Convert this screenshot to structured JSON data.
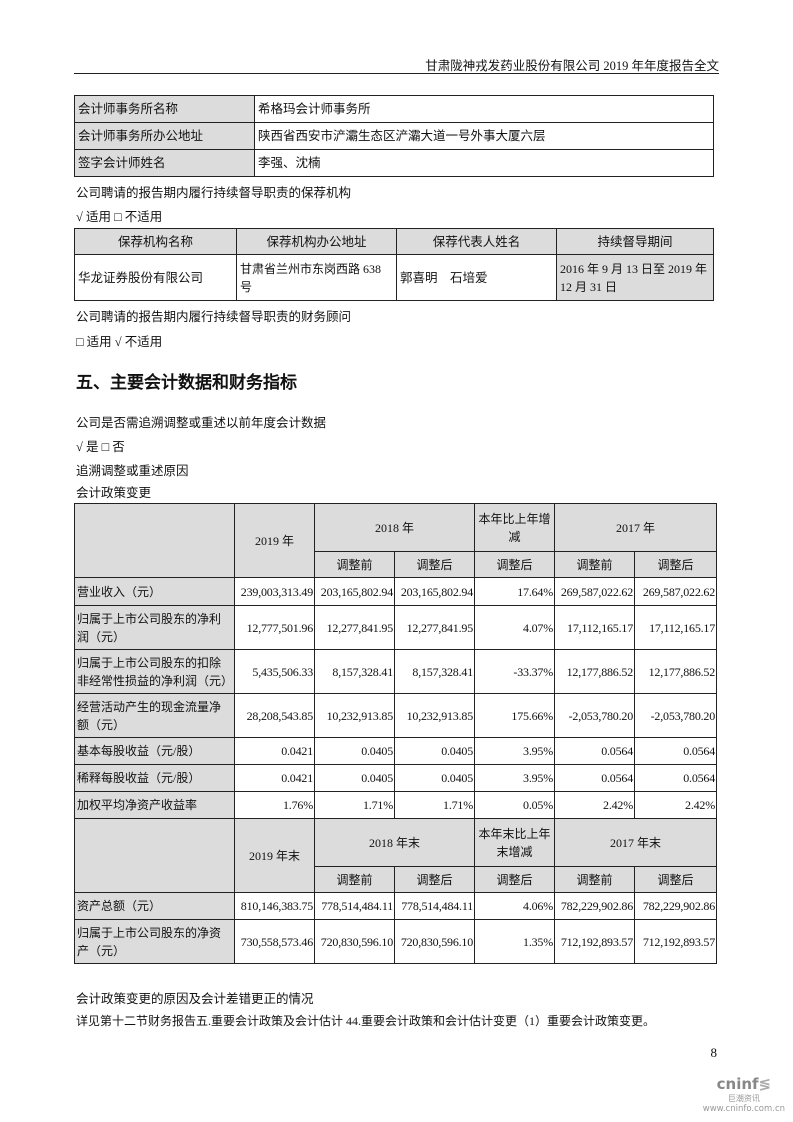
{
  "header": {
    "title": "甘肃陇神戎发药业股份有限公司 2019 年年度报告全文"
  },
  "accounting_firm": [
    {
      "label": "会计师事务所名称",
      "value": "希格玛会计师事务所"
    },
    {
      "label": "会计师事务所办公地址",
      "value": "陕西省西安市浐灞生态区浐灞大道一号外事大厦六层"
    },
    {
      "label": "签字会计师姓名",
      "value": "李强、沈楠"
    }
  ],
  "sponsor_intro": "公司聘请的报告期内履行持续督导职责的保荐机构",
  "sponsor_applicable": "√ 适用 □ 不适用",
  "sponsor_table": {
    "headers": [
      "保荐机构名称",
      "保荐机构办公地址",
      "保荐代表人姓名",
      "持续督导期间"
    ],
    "row": [
      "华龙证券股份有限公司",
      "甘肃省兰州市东岗西路 638 号",
      "郭喜明　石培爱",
      "2016 年 9 月 13 日至 2019 年 12 月 31 日"
    ]
  },
  "advisor_intro": "公司聘请的报告期内履行持续督导职责的财务顾问",
  "advisor_applicable": "□ 适用 √ 不适用",
  "section_title": "五、主要会计数据和财务指标",
  "q_retro": "公司是否需追溯调整或重述以前年度会计数据",
  "q_retro_answer": "√ 是 □ 否",
  "retro_reason_label": "追溯调整或重述原因",
  "retro_reason": "会计政策变更",
  "fin_table": {
    "h1": {
      "y2019": "2019 年",
      "y2018": "2018 年",
      "change": "本年比上年增减",
      "y2017": "2017 年"
    },
    "sub": [
      "调整前",
      "调整后",
      "调整后",
      "调整前",
      "调整后"
    ],
    "rows": [
      [
        "营业收入（元）",
        "239,003,313.49",
        "203,165,802.94",
        "203,165,802.94",
        "17.64%",
        "269,587,022.62",
        "269,587,022.62"
      ],
      [
        "归属于上市公司股东的净利润（元）",
        "12,777,501.96",
        "12,277,841.95",
        "12,277,841.95",
        "4.07%",
        "17,112,165.17",
        "17,112,165.17"
      ],
      [
        "归属于上市公司股东的扣除非经常性损益的净利润（元）",
        "5,435,506.33",
        "8,157,328.41",
        "8,157,328.41",
        "-33.37%",
        "12,177,886.52",
        "12,177,886.52"
      ],
      [
        "经营活动产生的现金流量净额（元）",
        "28,208,543.85",
        "10,232,913.85",
        "10,232,913.85",
        "175.66%",
        "-2,053,780.20",
        "-2,053,780.20"
      ],
      [
        "基本每股收益（元/股）",
        "0.0421",
        "0.0405",
        "0.0405",
        "3.95%",
        "0.0564",
        "0.0564"
      ],
      [
        "稀释每股收益（元/股）",
        "0.0421",
        "0.0405",
        "0.0405",
        "3.95%",
        "0.0564",
        "0.0564"
      ],
      [
        "加权平均净资产收益率",
        "1.76%",
        "1.71%",
        "1.71%",
        "0.05%",
        "2.42%",
        "2.42%"
      ]
    ],
    "h2": {
      "y2019": "2019 年末",
      "y2018": "2018 年末",
      "change": "本年末比上年末增减",
      "y2017": "2017 年末"
    },
    "rows2": [
      [
        "资产总额（元）",
        "810,146,383.75",
        "778,514,484.11",
        "778,514,484.11",
        "4.06%",
        "782,229,902.86",
        "782,229,902.86"
      ],
      [
        "归属于上市公司股东的净资产（元）",
        "730,558,573.46",
        "720,830,596.10",
        "720,830,596.10",
        "1.35%",
        "712,192,893.57",
        "712,192,893.57"
      ]
    ]
  },
  "policy_change_label": "会计政策变更的原因及会计差错更正的情况",
  "policy_change_text": "详见第十二节财务报告五.重要会计政策及会计估计 44.重要会计政策和会计估计变更（1）重要会计政策变更。",
  "page_number": "8",
  "watermark": {
    "brand": "cninf",
    "cn": "巨潮资讯",
    "url": "www.cninfo.com.cn"
  }
}
